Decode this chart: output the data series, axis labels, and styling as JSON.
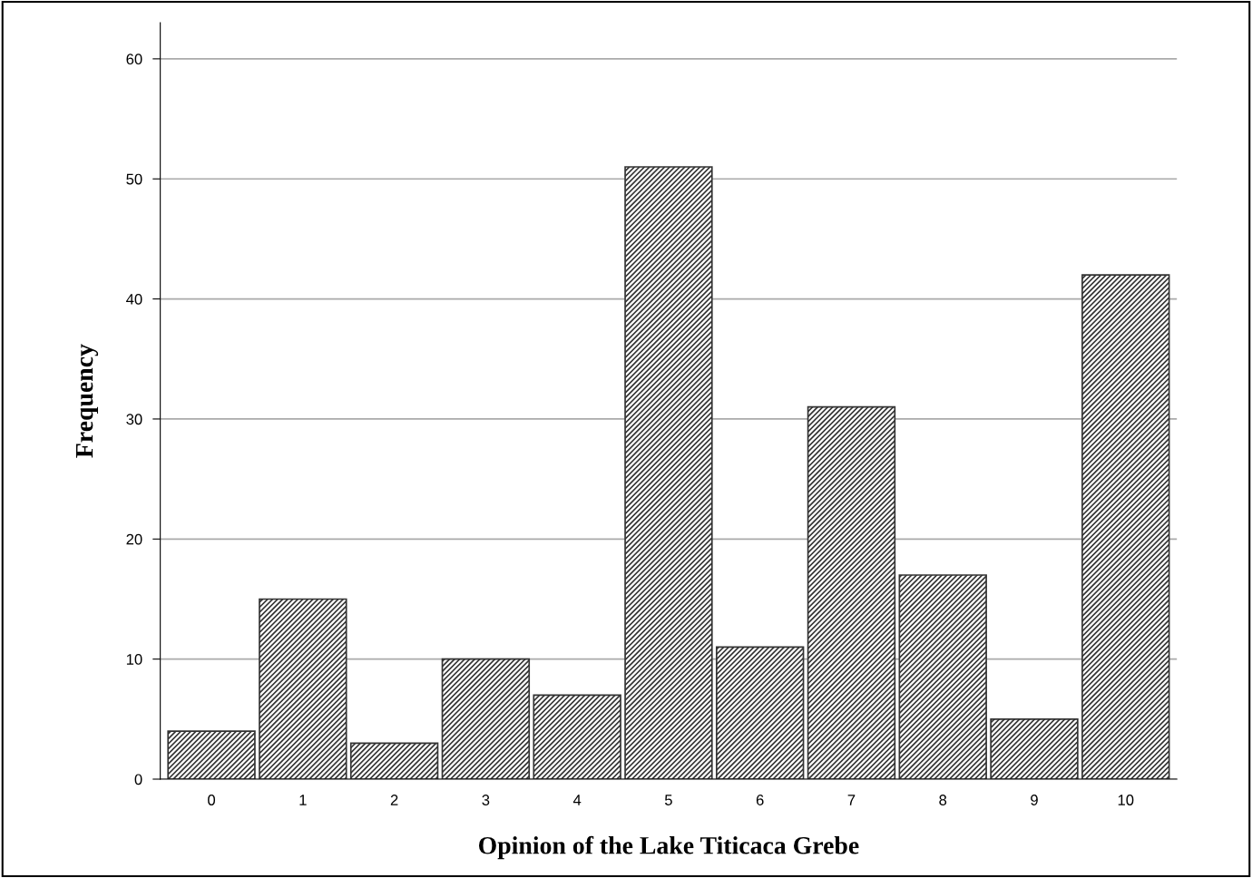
{
  "chart_data": {
    "type": "bar",
    "xlabel": "Opinion of the Lake Titicaca Grebe",
    "ylabel": "Frequency",
    "categories": [
      "0",
      "1",
      "2",
      "3",
      "4",
      "5",
      "6",
      "7",
      "8",
      "9",
      "10"
    ],
    "values": [
      4,
      15,
      3,
      10,
      7,
      51,
      11,
      31,
      17,
      5,
      42
    ],
    "color": "#333333",
    "ylim": [
      0,
      63
    ],
    "yticks": [
      0,
      10,
      20,
      30,
      40,
      50,
      60
    ],
    "grid": "y",
    "legend": false
  }
}
